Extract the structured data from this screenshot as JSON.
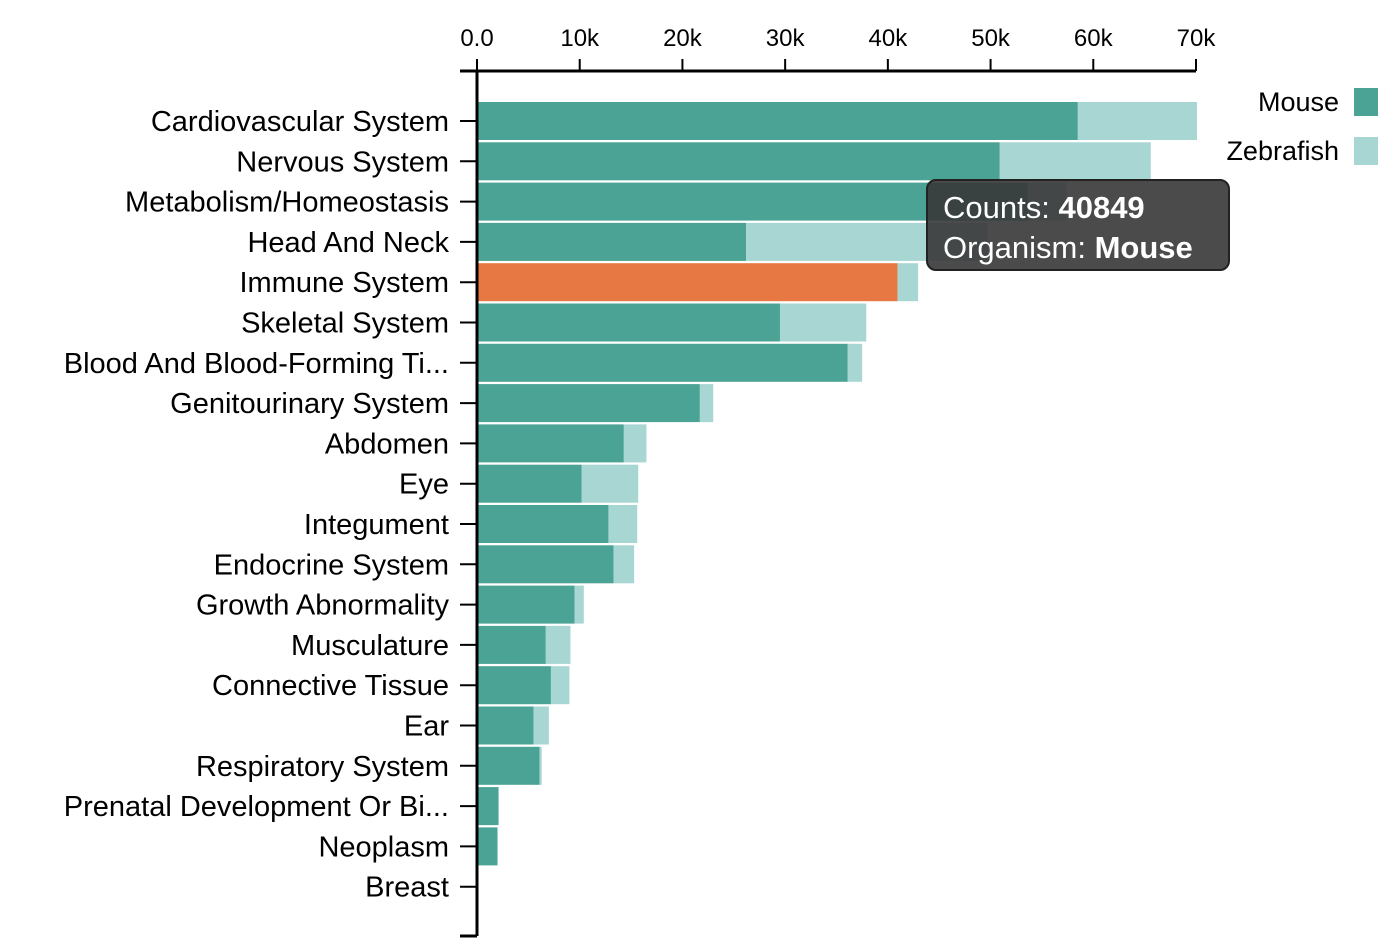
{
  "chart_data": {
    "type": "bar",
    "orientation": "horizontal",
    "stacked": true,
    "x_axis_position": "top",
    "xlim": [
      0,
      70000
    ],
    "x_ticks": [
      0,
      10000,
      20000,
      30000,
      40000,
      50000,
      60000,
      70000
    ],
    "x_tick_labels": [
      "0.0",
      "10k",
      "20k",
      "30k",
      "40k",
      "50k",
      "60k",
      "70k"
    ],
    "categories": [
      "Cardiovascular System",
      "Nervous System",
      "Metabolism/Homeostasis",
      "Head And Neck",
      "Immune System",
      "Skeletal System",
      "Blood And Blood-Forming Ti...",
      "Genitourinary System",
      "Abdomen",
      "Eye",
      "Integument",
      "Endocrine System",
      "Growth Abnormality",
      "Musculature",
      "Connective Tissue",
      "Ear",
      "Respiratory System",
      "Prenatal Development Or Bi...",
      "Neoplasm",
      "Breast"
    ],
    "series": [
      {
        "name": "Mouse",
        "color": "#4aa394",
        "values": [
          58400,
          50800,
          53500,
          26100,
          40849,
          29400,
          36000,
          21600,
          14200,
          10100,
          12700,
          13200,
          9400,
          6600,
          7100,
          5400,
          6000,
          2000,
          1900,
          0
        ]
      },
      {
        "name": "Zebrafish",
        "color": "#a8d6d3",
        "values": [
          11600,
          14700,
          3800,
          23500,
          2000,
          8400,
          1400,
          1300,
          2200,
          5500,
          2800,
          2000,
          900,
          2400,
          1800,
          1500,
          200,
          0,
          0,
          0
        ]
      }
    ],
    "highlight": {
      "category": "Immune System",
      "series": "Mouse",
      "color": "#e87843"
    },
    "legend": {
      "position": "top-right",
      "items": [
        "Mouse",
        "Zebrafish"
      ]
    },
    "grid": false
  },
  "tooltip": {
    "counts_label": "Counts:",
    "counts_value": "40849",
    "organism_label": "Organism:",
    "organism_value": "Mouse"
  }
}
